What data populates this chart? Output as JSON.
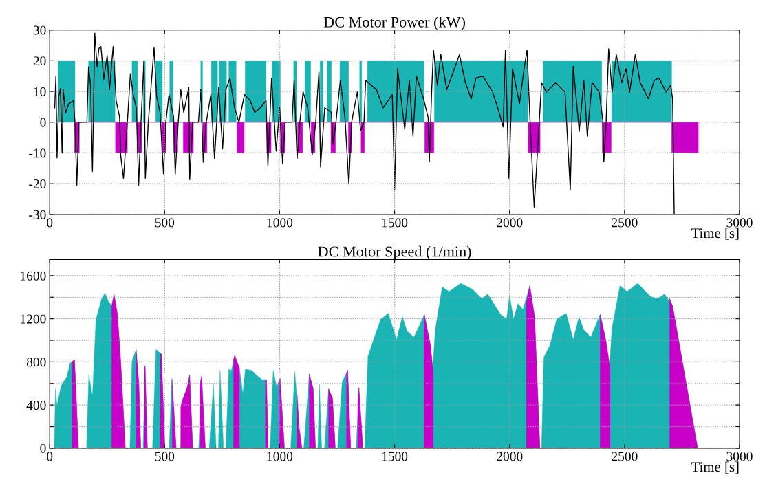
{
  "chart_data": [
    {
      "type": "area",
      "title": "DC Motor Power (kW)",
      "xlabel": "Time [s]",
      "xlim": [
        0,
        3000
      ],
      "ylim": [
        -30,
        30
      ],
      "xticks": [
        0,
        500,
        1000,
        1500,
        2000,
        2500,
        3000
      ],
      "yticks": [
        -30,
        -20,
        -10,
        0,
        10,
        20,
        30
      ],
      "grid": true,
      "series": [
        {
          "color": "#1ab4b4",
          "x": [
            36,
            36,
            110,
            110,
            169,
            169,
            284,
            284,
            358,
            358,
            382,
            382,
            407,
            407,
            416,
            416,
            461,
            461,
            490,
            490,
            522,
            522,
            537,
            537,
            657,
            657,
            665,
            665,
            703,
            703,
            730,
            730,
            738,
            738,
            769,
            769,
            779,
            779,
            811,
            811,
            850,
            850,
            941,
            941,
            967,
            967,
            1003,
            1003,
            1061,
            1061,
            1074,
            1074,
            1110,
            1110,
            1135,
            1135,
            1176,
            1176,
            1189,
            1189,
            1207,
            1207,
            1225,
            1225,
            1262,
            1262,
            1300,
            1300,
            1348,
            1348,
            1357,
            1357,
            1382,
            1382,
            1628,
            1628,
            1673,
            1673,
            2079,
            2079,
            2146,
            2146,
            2401,
            2401,
            2444,
            2444,
            2705,
            2705
          ],
          "values": [
            0,
            20,
            20,
            0,
            0,
            20,
            20,
            0,
            0,
            20,
            20,
            0,
            0,
            20,
            20,
            0,
            0,
            20,
            20,
            0,
            0,
            20,
            20,
            0,
            0,
            20,
            20,
            0,
            0,
            20,
            20,
            0,
            0,
            20,
            20,
            0,
            0,
            20,
            20,
            0,
            0,
            20,
            20,
            0,
            0,
            20,
            20,
            0,
            0,
            20,
            20,
            0,
            0,
            20,
            20,
            0,
            0,
            20,
            20,
            0,
            0,
            20,
            20,
            0,
            0,
            20,
            20,
            0,
            0,
            20,
            20,
            0,
            0,
            20,
            20,
            0,
            0,
            20,
            20,
            0,
            0,
            20,
            20,
            0,
            0,
            20,
            20,
            0
          ]
        },
        {
          "color": "#c800c8",
          "x": [
            108,
            108,
            129,
            129,
            286,
            286,
            338,
            338,
            380,
            380,
            400,
            400,
            487,
            487,
            505,
            505,
            539,
            539,
            557,
            557,
            581,
            581,
            625,
            625,
            666,
            666,
            684,
            684,
            815,
            815,
            846,
            846,
            944,
            944,
            963,
            963,
            1003,
            1003,
            1024,
            1024,
            1078,
            1078,
            1100,
            1100,
            1137,
            1137,
            1154,
            1154,
            1223,
            1223,
            1243,
            1243,
            1299,
            1299,
            1313,
            1313,
            1354,
            1354,
            1369,
            1369,
            1631,
            1631,
            1671,
            1671,
            2081,
            2081,
            2133,
            2133,
            2403,
            2403,
            2442,
            2442,
            2705,
            2705,
            2821,
            2821
          ],
          "values": [
            0,
            -10,
            -10,
            0,
            0,
            -10,
            -10,
            0,
            0,
            -10,
            -10,
            0,
            0,
            -10,
            -10,
            0,
            0,
            -10,
            -10,
            0,
            0,
            -10,
            -10,
            0,
            0,
            -10,
            -10,
            0,
            0,
            -10,
            -10,
            0,
            0,
            -10,
            -10,
            0,
            0,
            -10,
            -10,
            0,
            0,
            -10,
            -10,
            0,
            0,
            -10,
            -10,
            0,
            0,
            -10,
            -10,
            0,
            0,
            -10,
            -10,
            0,
            0,
            -10,
            -10,
            0,
            0,
            -10,
            -10,
            0,
            0,
            -10,
            -10,
            0,
            0,
            -10,
            -10,
            0,
            0,
            -10,
            -10,
            0
          ]
        },
        {
          "type": "line",
          "color": "#000000",
          "x": [
            22,
            27,
            32,
            39,
            47,
            54,
            59,
            69,
            83,
            103,
            110,
            118,
            127,
            162,
            169,
            178,
            186,
            196,
            206,
            214,
            223,
            235,
            250,
            260,
            276,
            289,
            304,
            309,
            321,
            338,
            351,
            363,
            377,
            387,
            397,
            410,
            416,
            429,
            454,
            465,
            480,
            495,
            505,
            519,
            539,
            546,
            559,
            570,
            583,
            605,
            609,
            622,
            647,
            657,
            668,
            681,
            701,
            717,
            735,
            752,
            766,
            784,
            804,
            823,
            847,
            872,
            892,
            916,
            941,
            949,
            965,
            985,
            1000,
            1013,
            1024,
            1054,
            1063,
            1076,
            1088,
            1102,
            1122,
            1142,
            1157,
            1171,
            1178,
            1196,
            1225,
            1233,
            1245,
            1264,
            1284,
            1301,
            1313,
            1338,
            1352,
            1367,
            1374,
            1421,
            1450,
            1490,
            1500,
            1513,
            1544,
            1564,
            1580,
            1595,
            1626,
            1646,
            1651,
            1661,
            1669,
            1686,
            1701,
            1727,
            1757,
            1782,
            1808,
            1833,
            1854,
            1884,
            1926,
            1946,
            1972,
            1982,
            1997,
            2013,
            2043,
            2063,
            2076,
            2088,
            2107,
            2129,
            2139,
            2160,
            2200,
            2241,
            2264,
            2277,
            2303,
            2323,
            2338,
            2359,
            2390,
            2405,
            2410,
            2420,
            2431,
            2446,
            2464,
            2487,
            2507,
            2522,
            2547,
            2568,
            2604,
            2629,
            2650,
            2680,
            2701,
            2709,
            2716
          ],
          "values": [
            4.7,
            15,
            -11.6,
            8.4,
            11,
            -10,
            10.6,
            3,
            6,
            7,
            0,
            -20.5,
            0,
            0,
            18,
            12,
            -16,
            29,
            18,
            24,
            24.6,
            14,
            21.7,
            10.6,
            24.6,
            7,
            1.7,
            -11,
            -18.3,
            0,
            15.8,
            9,
            4.7,
            -20.5,
            0,
            20,
            -18.3,
            0,
            24.3,
            8.4,
            3.2,
            -16.8,
            0,
            9,
            1.7,
            -17,
            0,
            10.6,
            3.2,
            11.3,
            -18.7,
            0,
            0,
            10.6,
            -13,
            0,
            9,
            -12,
            11.3,
            -8.7,
            10.6,
            14.3,
            4.7,
            0,
            9,
            7,
            3.2,
            4.7,
            7,
            -14.2,
            14.3,
            -9.4,
            4.7,
            -13.5,
            0,
            0,
            13.6,
            -12,
            0,
            9.9,
            4.7,
            -10.5,
            0,
            16.5,
            -14.6,
            4.7,
            3.2,
            -7.2,
            0,
            13.6,
            1.7,
            -20.1,
            0,
            9.9,
            -2.7,
            0,
            13.6,
            10.6,
            4.7,
            9,
            -22,
            17.4,
            -2.3,
            13.6,
            -4.5,
            15,
            7.6,
            1.5,
            -12.9,
            9.8,
            23.5,
            12,
            22,
            10.6,
            16.7,
            22,
            12.9,
            7.6,
            14.4,
            15,
            9.8,
            5.3,
            -1.5,
            23.5,
            -18.2,
            17.4,
            6,
            17.4,
            23.5,
            2.3,
            -27.7,
            0,
            12.9,
            9.8,
            12.9,
            9.8,
            -22,
            18.2,
            -3,
            13.6,
            -4.5,
            12.9,
            9.8,
            0.8,
            -12.9,
            0,
            23.9,
            9.8,
            22,
            12.9,
            17.4,
            9.8,
            22,
            12.9,
            7.6,
            13.6,
            14.4,
            9.8,
            12,
            7.6,
            -30
          ]
        }
      ]
    },
    {
      "type": "area",
      "title": "DC Motor Speed (1/min)",
      "xlabel": "Time [s]",
      "xlim": [
        0,
        3000
      ],
      "ylim": [
        0,
        1750
      ],
      "xticks": [
        0,
        500,
        1000,
        1500,
        2000,
        2500,
        3000
      ],
      "yticks": [
        0,
        {
          "value": 200,
          "label": null
        },
        400,
        {
          "value": 600,
          "label": null
        },
        800,
        {
          "value": 1000,
          "label": null
        },
        1200,
        {
          "value": 1400,
          "label": null
        },
        1600
      ],
      "grid": true,
      "series": [
        {
          "color": "#1ab4b4",
          "x": [
            20,
            25,
            32,
            49,
            59,
            74,
            88,
            108,
            113,
            125,
            160,
            170,
            186,
            201,
            226,
            241,
            255,
            270,
            280,
            295,
            309,
            329,
            349,
            358,
            376,
            388,
            396,
            406,
            415,
            425,
            447,
            462,
            486,
            501,
            520,
            530,
            550,
            570,
            574,
            599,
            609,
            622,
            648,
            661,
            677,
            694,
            712,
            724,
            734,
            741,
            756,
            766,
            779,
            790,
            805,
            825,
            840,
            851,
            879,
            898,
            923,
            943,
            950,
            959,
            972,
            987,
            1002,
            1021,
            1048,
            1066,
            1085,
            1097,
            1105,
            1129,
            1146,
            1156,
            1166,
            1173,
            1183,
            1195,
            1213,
            1230,
            1242,
            1252,
            1272,
            1296,
            1309,
            1333,
            1345,
            1362,
            1370,
            1384,
            1418,
            1439,
            1473,
            1508,
            1534,
            1554,
            1584,
            1630,
            1656,
            1666,
            1676,
            1707,
            1737,
            1788,
            1839,
            1880,
            1905,
            1961,
            1987,
            2000,
            2017,
            2037,
            2058,
            2088,
            2109,
            2132,
            2139,
            2149,
            2175,
            2205,
            2246,
            2277,
            2302,
            2323,
            2353,
            2394,
            2419,
            2434,
            2445,
            2480,
            2511,
            2557,
            2613,
            2643,
            2674,
            2709,
            2818
          ],
          "values": [
            0,
            550,
            400,
            572,
            615,
            658,
            786,
            818,
            593,
            0,
            0,
            679,
            486,
            1193,
            1386,
            1439,
            1364,
            1322,
            1429,
            1236,
            807,
            0,
            0,
            807,
            915,
            593,
            0,
            0,
            765,
            0,
            0,
            915,
            872,
            0,
            0,
            647,
            0,
            0,
            422,
            572,
            679,
            0,
            0,
            668,
            0,
            0,
            593,
            0,
            0,
            722,
            0,
            0,
            733,
            722,
            861,
            743,
            508,
            733,
            722,
            679,
            636,
            636,
            0,
            0,
            722,
            572,
            647,
            0,
            0,
            711,
            186,
            0,
            0,
            690,
            550,
            0,
            0,
            593,
            0,
            0,
            550,
            465,
            0,
            0,
            615,
            722,
            0,
            0,
            561,
            0,
            0,
            850,
            1065,
            1193,
            1252,
            1008,
            1219,
            1086,
            1030,
            1241,
            953,
            731,
            1086,
            1496,
            1452,
            1529,
            1474,
            1385,
            1429,
            1241,
            1197,
            1418,
            1197,
            1341,
            1285,
            1507,
            1219,
            0,
            0,
            842,
            953,
            1197,
            1252,
            1008,
            1219,
            1097,
            1030,
            1241,
            997,
            731,
            1108,
            1507,
            1452,
            1529,
            1407,
            1385,
            1429,
            1319,
            0
          ]
        },
        {
          "color": "#c800c8",
          "x": [
            98,
            108,
            113,
            125,
            126,
            270,
            280,
            295,
            309,
            329,
            330,
            376,
            388,
            396,
            397,
            412,
            415,
            425,
            426,
            481,
            486,
            501,
            502,
            533,
            550,
            551,
            570,
            574,
            599,
            609,
            622,
            623,
            653,
            661,
            677,
            678,
            800,
            805,
            825,
            826,
            938,
            943,
            950,
            951,
            997,
            1002,
            1021,
            1022,
            1076,
            1085,
            1097,
            1098,
            1129,
            1146,
            1156,
            1157,
            1213,
            1230,
            1242,
            1243,
            1291,
            1296,
            1309,
            1310,
            1340,
            1345,
            1362,
            1363,
            1628,
            1656,
            1668,
            1669,
            2073,
            2088,
            2109,
            2132,
            2133,
            2394,
            2419,
            2437,
            2438,
            2696,
            2709,
            2818
          ],
          "values": [
            805,
            818,
            593,
            0,
            null,
            1322,
            1429,
            1236,
            807,
            0,
            null,
            915,
            593,
            0,
            null,
            740,
            765,
            0,
            null,
            880,
            872,
            0,
            null,
            640,
            0,
            null,
            380,
            422,
            572,
            679,
            0,
            null,
            600,
            668,
            0,
            null,
            830,
            861,
            743,
            null,
            636,
            636,
            0,
            null,
            630,
            647,
            0,
            null,
            500,
            186,
            0,
            null,
            690,
            550,
            0,
            null,
            550,
            465,
            0,
            null,
            700,
            722,
            0,
            null,
            450,
            561,
            0,
            null,
            1245,
            953,
            700,
            null,
            1350,
            1507,
            1219,
            0,
            null,
            1241,
            997,
            750,
            null,
            1390,
            1319,
            0
          ]
        }
      ]
    }
  ]
}
